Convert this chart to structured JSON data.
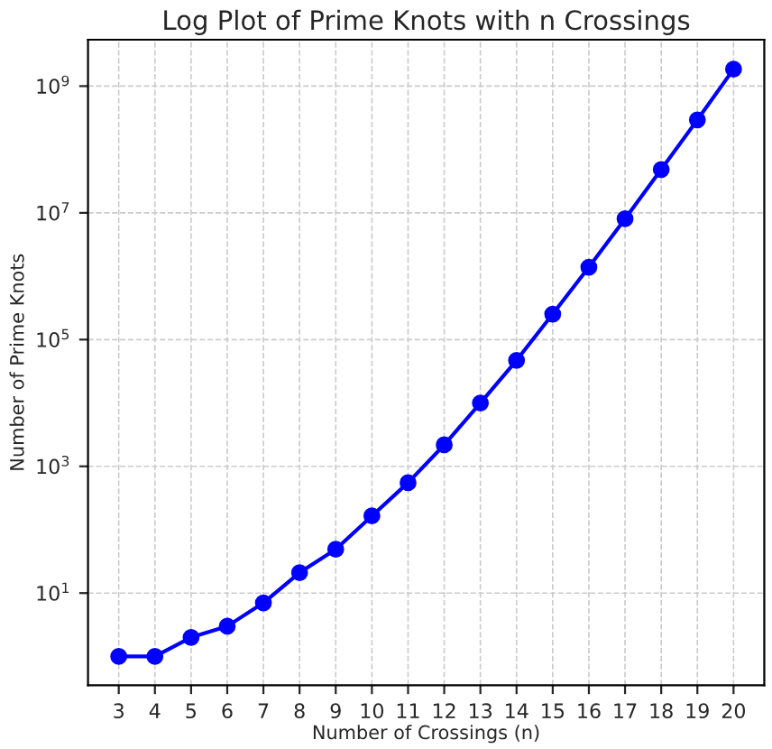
{
  "chart_data": {
    "type": "line",
    "title": "Log Plot of Prime Knots with n Crossings",
    "xlabel": "Number of Crossings (n)",
    "ylabel": "Number of Prime Knots",
    "x": [
      3,
      4,
      5,
      6,
      7,
      8,
      9,
      10,
      11,
      12,
      13,
      14,
      15,
      16,
      17,
      18,
      19,
      20
    ],
    "series": [
      {
        "color": "#0000ff",
        "values": [
          1,
          1,
          2,
          3,
          7,
          21,
          49,
          165,
          552,
          2180,
          9990,
          47000,
          253000,
          1390000,
          8050000,
          48300000,
          294000000,
          1850000000
        ]
      }
    ],
    "log": "y",
    "xlim": [
      2.15,
      20.85
    ],
    "ylim": [
      0.35,
      5400000000
    ],
    "xticks": [
      3,
      4,
      5,
      6,
      7,
      8,
      9,
      10,
      11,
      12,
      13,
      14,
      15,
      16,
      17,
      18,
      19,
      20
    ],
    "yticks": [
      {
        "value": 10,
        "label": "10$^{1}$"
      },
      {
        "value": 1000,
        "label": "10$^{3}$"
      },
      {
        "value": 100000,
        "label": "10$^{5}$"
      },
      {
        "value": 10000000,
        "label": "10$^{7}$"
      },
      {
        "value": 1000000000,
        "label": "10$^{9}$"
      }
    ],
    "grid": true,
    "marker": "circle",
    "line_style": "solid"
  }
}
